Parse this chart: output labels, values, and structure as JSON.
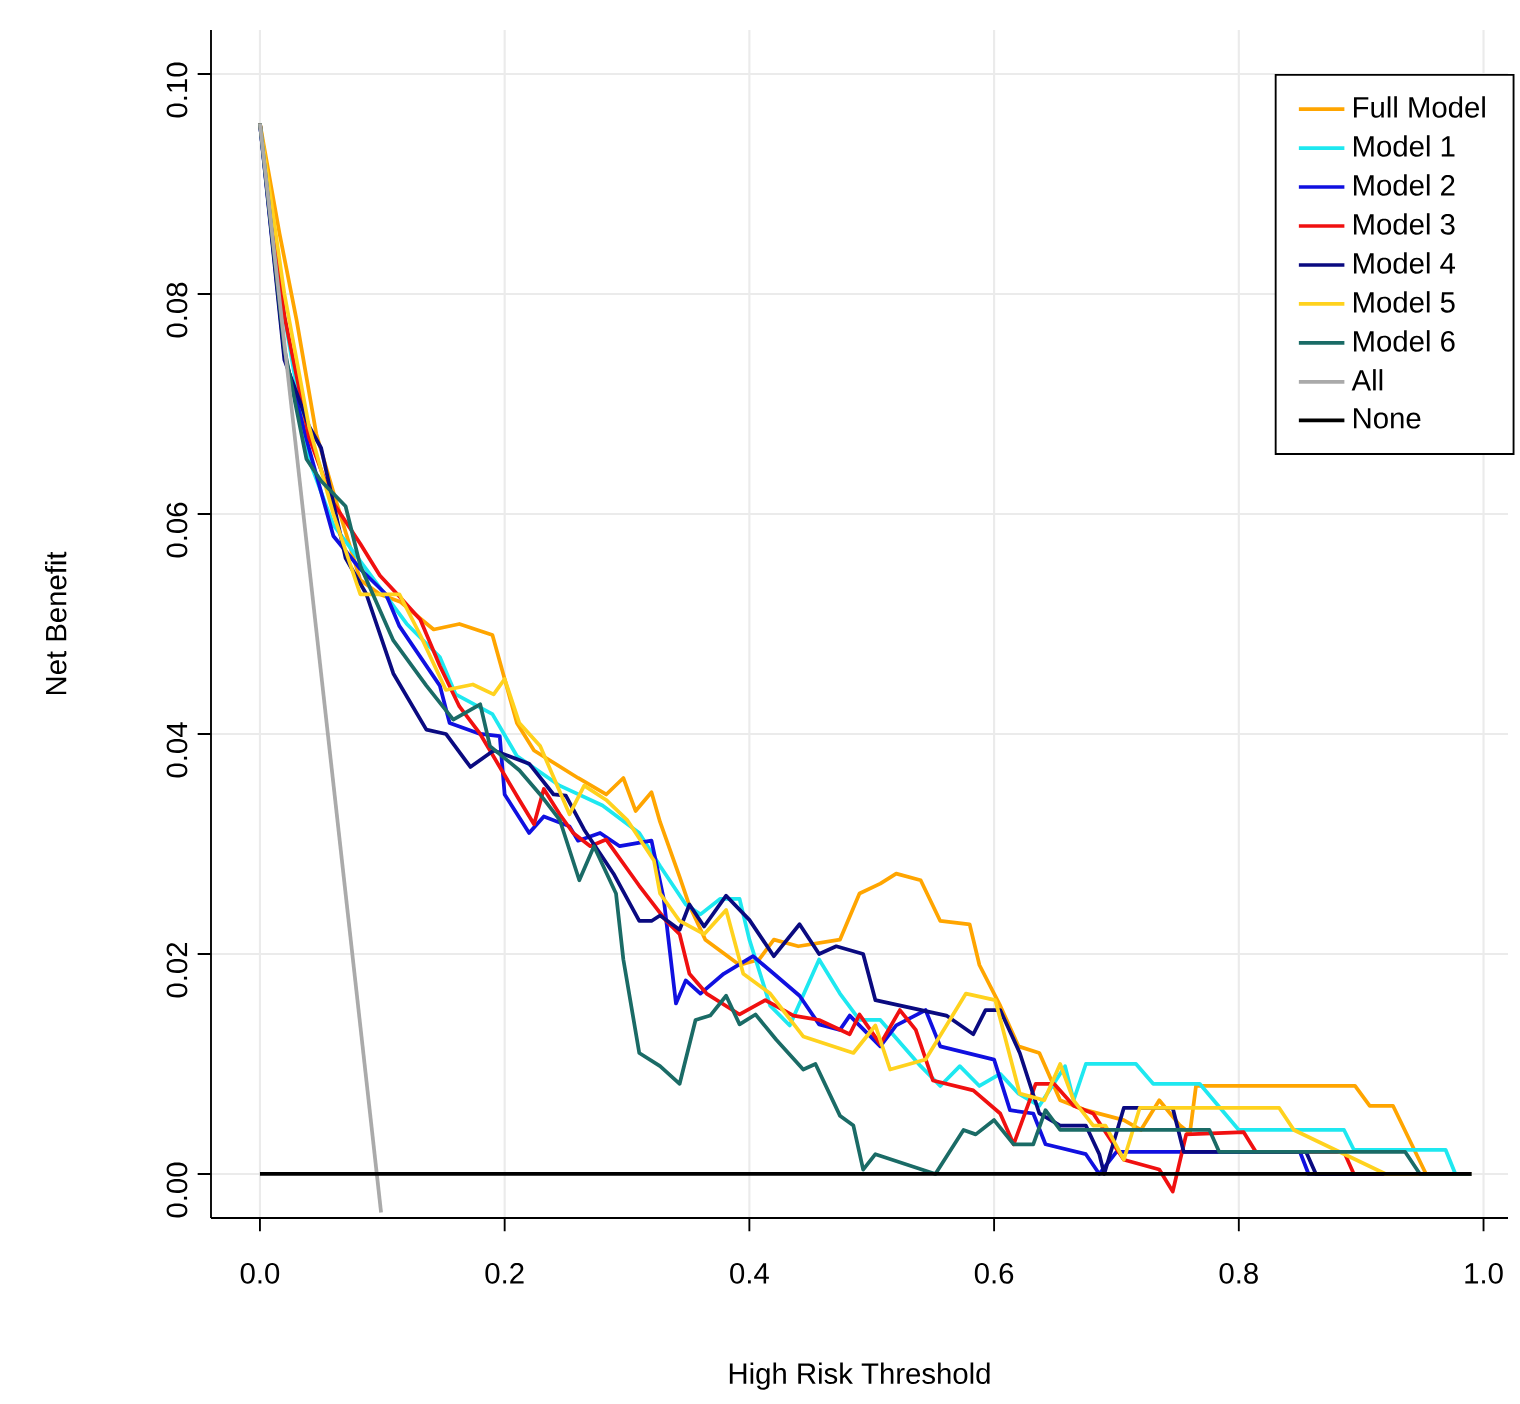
{
  "chart_data": {
    "type": "line",
    "xlabel": "High Risk Threshold",
    "ylabel": "Net Benefit",
    "xlim": [
      -0.04,
      1.02
    ],
    "ylim": [
      -0.004,
      0.104
    ],
    "xticks": [
      {
        "value": 0,
        "label": "0.0"
      },
      {
        "value": 0.2,
        "label": "0.2"
      },
      {
        "value": 0.4,
        "label": "0.4"
      },
      {
        "value": 0.6,
        "label": "0.6"
      },
      {
        "value": 0.8,
        "label": "0.8"
      },
      {
        "value": 1,
        "label": "1.0"
      }
    ],
    "yticks": [
      {
        "value": 0,
        "label": "0.00"
      },
      {
        "value": 0.02,
        "label": "0.02"
      },
      {
        "value": 0.04,
        "label": "0.04"
      },
      {
        "value": 0.06,
        "label": "0.06"
      },
      {
        "value": 0.08,
        "label": "0.08"
      },
      {
        "value": 0.1,
        "label": "0.10"
      }
    ],
    "grid": true,
    "legend": "top right",
    "series": [
      {
        "name": "Full Model",
        "color": "#ffa500",
        "x": [
          0,
          0.016,
          0.03,
          0.046,
          0.06,
          0.082,
          0.098,
          0.115,
          0.131,
          0.142,
          0.163,
          0.19,
          0.21,
          0.224,
          0.26,
          0.283,
          0.297,
          0.307,
          0.32,
          0.327,
          0.343,
          0.351,
          0.364,
          0.392,
          0.408,
          0.42,
          0.44,
          0.474,
          0.49,
          0.507,
          0.52,
          0.54,
          0.556,
          0.58,
          0.588,
          0.605,
          0.62,
          0.637,
          0.654,
          0.675,
          0.706,
          0.72,
          0.735,
          0.752,
          0.76,
          0.765,
          0.895,
          0.907,
          0.926,
          0.953,
          0.99
        ],
        "values": [
          0.0955,
          0.0855,
          0.0776,
          0.0673,
          0.062,
          0.054,
          0.0527,
          0.052,
          0.0505,
          0.0495,
          0.05,
          0.049,
          0.041,
          0.0385,
          0.036,
          0.0345,
          0.036,
          0.033,
          0.0347,
          0.032,
          0.027,
          0.0244,
          0.0213,
          0.019,
          0.0195,
          0.0213,
          0.0207,
          0.0213,
          0.0255,
          0.0264,
          0.0273,
          0.0267,
          0.023,
          0.0227,
          0.019,
          0.0153,
          0.0116,
          0.011,
          0.0067,
          0.0058,
          0.0049,
          0.004,
          0.0067,
          0.0044,
          0.0037,
          0.008,
          0.008,
          0.0062,
          0.0062,
          0,
          0
        ]
      },
      {
        "name": "Model 1",
        "color": "#1ee8f0",
        "x": [
          0,
          0.02,
          0.04,
          0.06,
          0.08,
          0.1,
          0.12,
          0.147,
          0.16,
          0.19,
          0.21,
          0.245,
          0.28,
          0.31,
          0.327,
          0.348,
          0.36,
          0.376,
          0.392,
          0.4,
          0.417,
          0.433,
          0.457,
          0.474,
          0.49,
          0.507,
          0.54,
          0.556,
          0.572,
          0.588,
          0.605,
          0.62,
          0.637,
          0.658,
          0.665,
          0.675,
          0.716,
          0.73,
          0.768,
          0.8,
          0.886,
          0.894,
          0.969,
          0.977,
          0.99
        ],
        "values": [
          0.0955,
          0.078,
          0.065,
          0.059,
          0.056,
          0.053,
          0.05,
          0.047,
          0.0436,
          0.0418,
          0.038,
          0.0353,
          0.0335,
          0.031,
          0.028,
          0.0245,
          0.0236,
          0.025,
          0.025,
          0.0213,
          0.0153,
          0.0135,
          0.0195,
          0.0164,
          0.014,
          0.014,
          0.0098,
          0.008,
          0.0098,
          0.008,
          0.0091,
          0.0073,
          0.0062,
          0.0098,
          0.0067,
          0.01,
          0.01,
          0.0082,
          0.0082,
          0.004,
          0.004,
          0.0022,
          0.0022,
          0,
          0
        ]
      },
      {
        "name": "Model 2",
        "color": "#1010e0",
        "x": [
          0,
          0.02,
          0.04,
          0.06,
          0.082,
          0.103,
          0.114,
          0.147,
          0.155,
          0.18,
          0.196,
          0.2,
          0.22,
          0.232,
          0.253,
          0.26,
          0.278,
          0.294,
          0.32,
          0.33,
          0.34,
          0.348,
          0.36,
          0.379,
          0.403,
          0.42,
          0.441,
          0.457,
          0.474,
          0.482,
          0.507,
          0.52,
          0.544,
          0.556,
          0.6,
          0.613,
          0.632,
          0.642,
          0.675,
          0.686,
          0.7,
          0.85,
          0.857,
          0.99
        ],
        "values": [
          0.0955,
          0.0745,
          0.066,
          0.058,
          0.055,
          0.0527,
          0.0498,
          0.0444,
          0.041,
          0.04,
          0.0398,
          0.0345,
          0.031,
          0.0325,
          0.0316,
          0.0303,
          0.031,
          0.0298,
          0.0303,
          0.025,
          0.0155,
          0.0176,
          0.0164,
          0.0182,
          0.0198,
          0.0182,
          0.0162,
          0.0136,
          0.0131,
          0.0144,
          0.0116,
          0.0135,
          0.0149,
          0.0116,
          0.0104,
          0.0058,
          0.0055,
          0.0027,
          0.0018,
          0,
          0.002,
          0.002,
          0,
          0
        ]
      },
      {
        "name": "Model 3",
        "color": "#f01010",
        "x": [
          0,
          0.02,
          0.04,
          0.06,
          0.082,
          0.098,
          0.114,
          0.131,
          0.147,
          0.163,
          0.18,
          0.196,
          0.212,
          0.224,
          0.232,
          0.245,
          0.256,
          0.27,
          0.283,
          0.31,
          0.332,
          0.343,
          0.351,
          0.365,
          0.392,
          0.413,
          0.436,
          0.457,
          0.482,
          0.49,
          0.507,
          0.523,
          0.536,
          0.55,
          0.583,
          0.605,
          0.616,
          0.634,
          0.649,
          0.665,
          0.681,
          0.706,
          0.735,
          0.746,
          0.757,
          0.804,
          0.814,
          0.886,
          0.894,
          0.99
        ],
        "values": [
          0.0955,
          0.078,
          0.067,
          0.061,
          0.0573,
          0.0544,
          0.0525,
          0.0504,
          0.0462,
          0.0425,
          0.04,
          0.037,
          0.034,
          0.0318,
          0.035,
          0.0327,
          0.031,
          0.0298,
          0.0304,
          0.0262,
          0.023,
          0.0218,
          0.0182,
          0.0164,
          0.0145,
          0.0158,
          0.0144,
          0.014,
          0.0127,
          0.0145,
          0.0118,
          0.0149,
          0.0131,
          0.0085,
          0.0076,
          0.0055,
          0.0027,
          0.0082,
          0.0082,
          0.0062,
          0.0055,
          0.0013,
          0.0004,
          -0.0016,
          0.0036,
          0.0038,
          0.002,
          0.002,
          0,
          0
        ]
      },
      {
        "name": "Model 4",
        "color": "#0a0a80",
        "x": [
          0,
          0.02,
          0.04,
          0.05,
          0.07,
          0.087,
          0.109,
          0.136,
          0.152,
          0.172,
          0.191,
          0.22,
          0.24,
          0.25,
          0.265,
          0.289,
          0.31,
          0.32,
          0.327,
          0.343,
          0.351,
          0.363,
          0.381,
          0.4,
          0.42,
          0.441,
          0.457,
          0.471,
          0.493,
          0.503,
          0.561,
          0.583,
          0.593,
          0.605,
          0.621,
          0.637,
          0.654,
          0.675,
          0.686,
          0.69,
          0.706,
          0.746,
          0.755,
          0.855,
          0.863,
          0.99
        ],
        "values": [
          0.0955,
          0.074,
          0.068,
          0.066,
          0.056,
          0.0527,
          0.0455,
          0.0404,
          0.04,
          0.037,
          0.0385,
          0.0373,
          0.0345,
          0.0344,
          0.0313,
          0.0273,
          0.023,
          0.023,
          0.0235,
          0.0222,
          0.0245,
          0.0225,
          0.0253,
          0.0231,
          0.0198,
          0.0227,
          0.02,
          0.0207,
          0.02,
          0.0158,
          0.0144,
          0.0127,
          0.0149,
          0.0149,
          0.011,
          0.0055,
          0.0044,
          0.0044,
          0.0018,
          0,
          0.006,
          0.006,
          0.002,
          0.002,
          0,
          0
        ]
      },
      {
        "name": "Model 5",
        "color": "#ffd21e",
        "x": [
          0,
          0.02,
          0.04,
          0.06,
          0.082,
          0.114,
          0.131,
          0.152,
          0.174,
          0.191,
          0.2,
          0.212,
          0.229,
          0.253,
          0.265,
          0.283,
          0.3,
          0.322,
          0.327,
          0.343,
          0.363,
          0.381,
          0.395,
          0.417,
          0.444,
          0.485,
          0.503,
          0.515,
          0.544,
          0.577,
          0.601,
          0.621,
          0.641,
          0.654,
          0.665,
          0.681,
          0.691,
          0.706,
          0.719,
          0.833,
          0.845,
          0.92,
          0.99
        ],
        "values": [
          0.0955,
          0.08,
          0.068,
          0.06,
          0.0527,
          0.0527,
          0.049,
          0.044,
          0.0445,
          0.0436,
          0.045,
          0.041,
          0.0389,
          0.0327,
          0.0353,
          0.034,
          0.0322,
          0.0285,
          0.0255,
          0.023,
          0.0218,
          0.024,
          0.0182,
          0.0164,
          0.0125,
          0.011,
          0.0135,
          0.0095,
          0.0104,
          0.0164,
          0.0158,
          0.0073,
          0.0067,
          0.01,
          0.0067,
          0.0044,
          0.0044,
          0.0013,
          0.006,
          0.006,
          0.004,
          0,
          0
        ]
      },
      {
        "name": "Model 6",
        "color": "#1a6b66",
        "x": [
          0,
          0.02,
          0.038,
          0.05,
          0.07,
          0.082,
          0.109,
          0.136,
          0.158,
          0.18,
          0.188,
          0.212,
          0.229,
          0.245,
          0.261,
          0.273,
          0.291,
          0.297,
          0.31,
          0.327,
          0.343,
          0.356,
          0.368,
          0.381,
          0.392,
          0.405,
          0.422,
          0.444,
          0.454,
          0.474,
          0.485,
          0.493,
          0.503,
          0.552,
          0.575,
          0.585,
          0.6,
          0.616,
          0.632,
          0.642,
          0.654,
          0.776,
          0.784,
          0.936,
          0.948,
          0.99
        ],
        "values": [
          0.0955,
          0.075,
          0.065,
          0.063,
          0.0607,
          0.0553,
          0.0485,
          0.0444,
          0.0413,
          0.0427,
          0.0389,
          0.0367,
          0.0345,
          0.0322,
          0.0267,
          0.0298,
          0.0255,
          0.0195,
          0.011,
          0.0098,
          0.0082,
          0.014,
          0.0144,
          0.0162,
          0.0136,
          0.0145,
          0.0122,
          0.0095,
          0.01,
          0.0053,
          0.0044,
          0.0004,
          0.0018,
          0,
          0.004,
          0.0036,
          0.0049,
          0.0027,
          0.0027,
          0.0058,
          0.004,
          0.004,
          0.002,
          0.002,
          0,
          0
        ]
      },
      {
        "name": "All",
        "color": "#aaaaaa",
        "x": [
          0,
          0.099
        ],
        "values": [
          0.0955,
          -0.0035
        ]
      },
      {
        "name": "None",
        "color": "#000000",
        "x": [
          0,
          0.99
        ],
        "values": [
          0,
          0
        ]
      }
    ]
  }
}
